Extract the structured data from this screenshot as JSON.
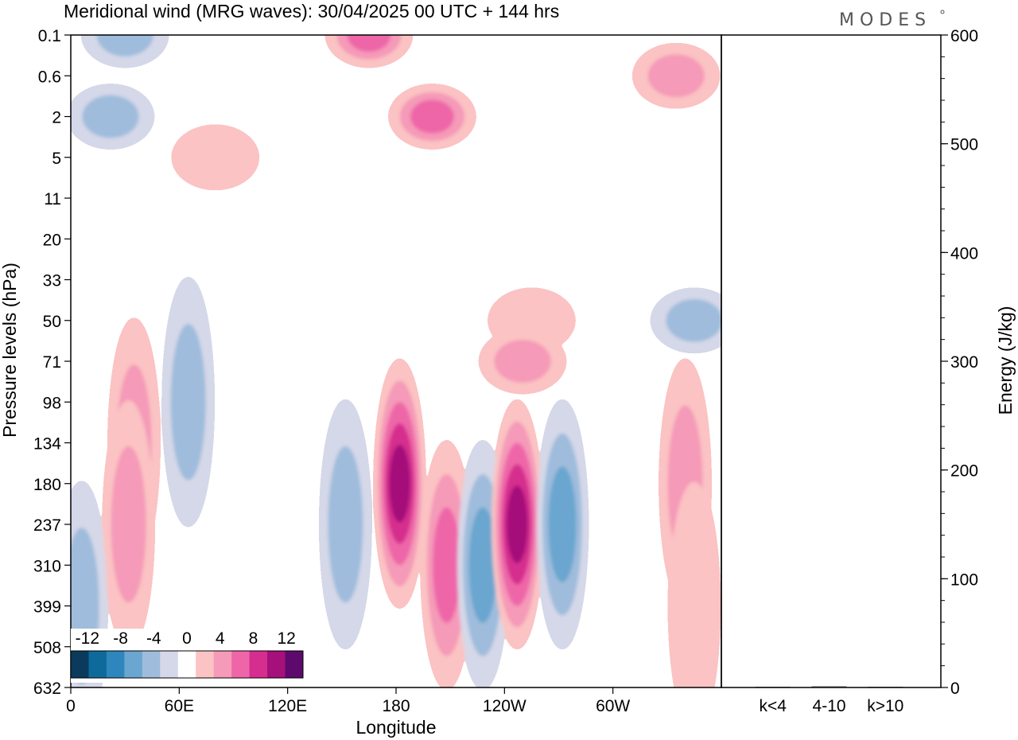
{
  "chart_data": [
    {
      "type": "heatmap",
      "title": "Meridional wind (MRG waves):  30/04/2025  00 UTC  + 144 hrs",
      "xlabel": "Longitude",
      "ylabel": "Pressure levels (hPa)",
      "x_ticks": [
        "0",
        "60E",
        "120E",
        "180",
        "120W",
        "60W"
      ],
      "x_tick_degrees": [
        0,
        60,
        120,
        180,
        240,
        300
      ],
      "xlim_degrees": [
        0,
        360
      ],
      "y_ticks": [
        "0.1",
        "0.6",
        "2",
        "5",
        "11",
        "20",
        "33",
        "50",
        "71",
        "98",
        "134",
        "180",
        "237",
        "310",
        "399",
        "508",
        "632"
      ],
      "y_order": "top-to-bottom",
      "colorbar": {
        "labels": [
          "-12",
          "-8",
          "-4",
          "0",
          "4",
          "8",
          "12"
        ],
        "levels": [
          -14,
          -12,
          -10,
          -8,
          -6,
          -4,
          -2,
          2,
          4,
          6,
          8,
          10,
          12,
          14
        ],
        "colors": [
          "#0b3a5c",
          "#0f6a9c",
          "#2f86bd",
          "#6aa6cf",
          "#9fbcdc",
          "#d5d8e8",
          "#ffffff",
          "#fbc3c3",
          "#f59ab8",
          "#ee66a8",
          "#d52e8e",
          "#a5107a",
          "#5e0a6d"
        ]
      },
      "features": [
        {
          "lon": 30,
          "level": "0.1",
          "sign": "negative",
          "peak": -6
        },
        {
          "lon": 22,
          "level": "2",
          "sign": "negative",
          "peak": -6
        },
        {
          "lon": 165,
          "level": "0.1",
          "sign": "positive",
          "peak": 8
        },
        {
          "lon": 200,
          "level": "2",
          "sign": "positive",
          "peak": 8
        },
        {
          "lon": 80,
          "level": "5",
          "sign": "positive",
          "peak": 4
        },
        {
          "lon": 335,
          "level": "0.6",
          "sign": "positive",
          "peak": 6
        },
        {
          "lon": 345,
          "level": "50",
          "sign": "negative",
          "peak": -6
        },
        {
          "lon": 255,
          "level": "50",
          "sign": "positive",
          "peak": 4
        },
        {
          "lon": 35,
          "level": "134",
          "sign": "positive",
          "peak": 6
        },
        {
          "lon": 32,
          "level": "237",
          "sign": "positive",
          "peak": 6
        },
        {
          "lon": 6,
          "level": "399",
          "sign": "negative",
          "peak": -6
        },
        {
          "lon": 65,
          "level": "98",
          "sign": "negative",
          "peak": -6
        },
        {
          "lon": 152,
          "level": "237",
          "sign": "negative",
          "peak": -6
        },
        {
          "lon": 182,
          "level": "180",
          "sign": "positive",
          "peak": 12
        },
        {
          "lon": 208,
          "level": "310",
          "sign": "positive",
          "peak": 8
        },
        {
          "lon": 228,
          "level": "310",
          "sign": "negative",
          "peak": -8
        },
        {
          "lon": 247,
          "level": "237",
          "sign": "positive",
          "peak": 12
        },
        {
          "lon": 272,
          "level": "237",
          "sign": "negative",
          "peak": -8
        },
        {
          "lon": 340,
          "level": "180",
          "sign": "positive",
          "peak": 6
        },
        {
          "lon": 345,
          "level": "399",
          "sign": "positive",
          "peak": 4
        },
        {
          "lon": 250,
          "level": "71",
          "sign": "positive",
          "peak": 6
        }
      ]
    },
    {
      "type": "bar",
      "ylabel": "Energy (J/kg)",
      "categories": [
        "k<4",
        "4-10",
        "k>10"
      ],
      "values": [
        0,
        1,
        0
      ],
      "ylim": [
        0,
        600
      ],
      "y_ticks": [
        "0",
        "100",
        "200",
        "300",
        "400",
        "500",
        "600"
      ],
      "y_tick_values": [
        0,
        100,
        200,
        300,
        400,
        500,
        600
      ]
    }
  ],
  "logo": {
    "text": "MODES"
  }
}
